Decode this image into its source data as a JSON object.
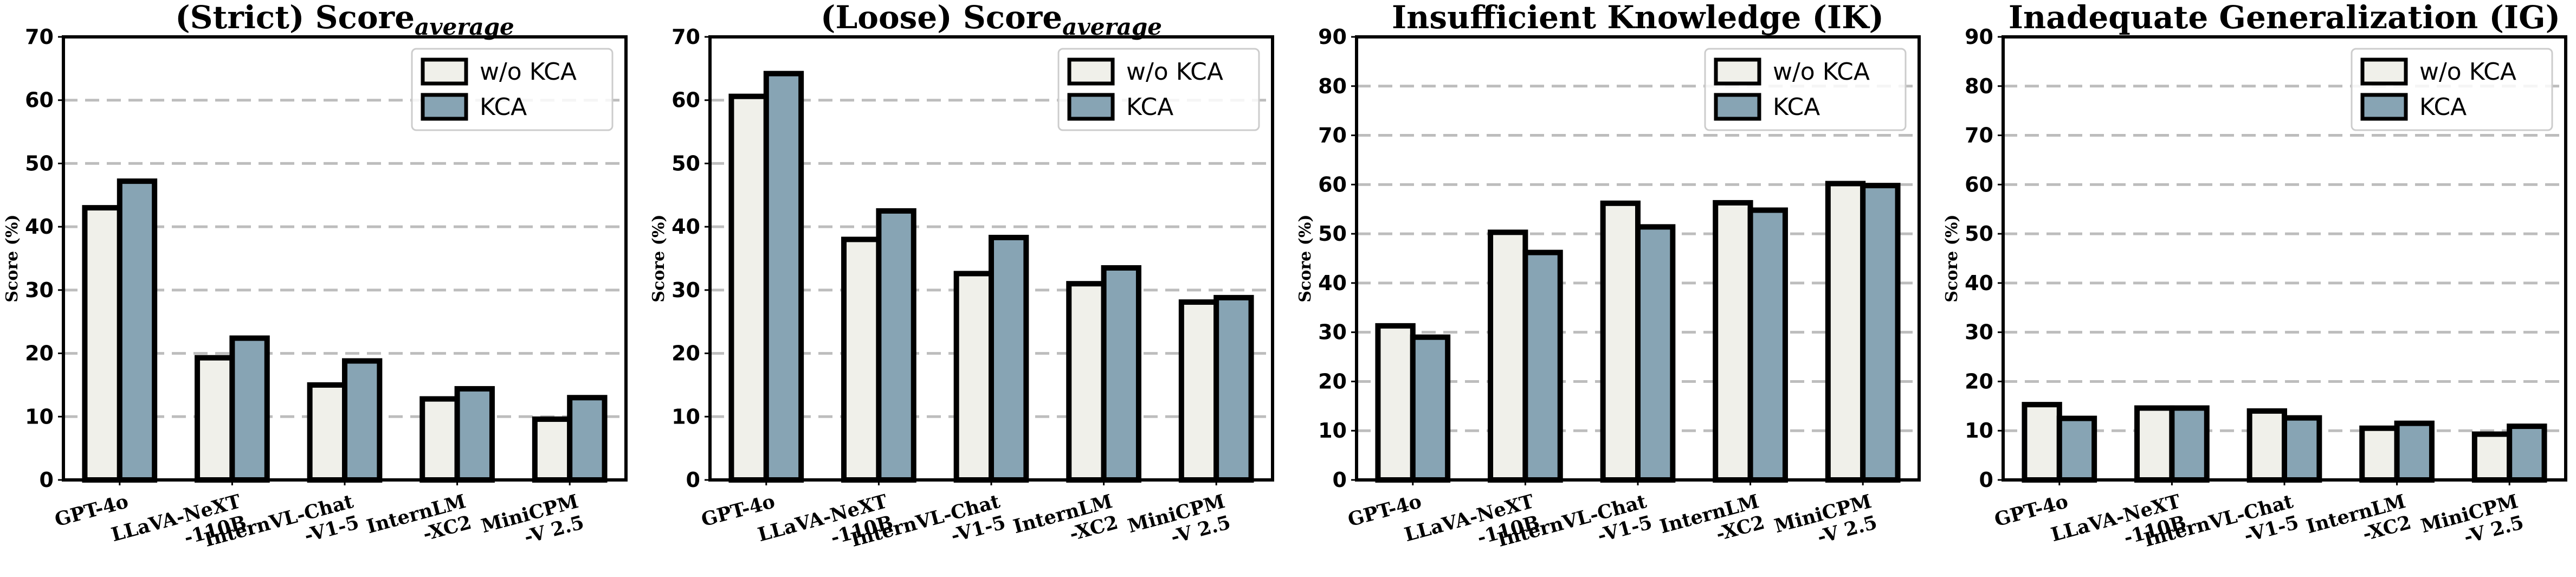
{
  "chart_data": [
    {
      "type": "bar",
      "title": "(Strict) Score",
      "title_subscript": "average",
      "xlabel": "",
      "ylabel": "Score (%)",
      "ylim": [
        0,
        70
      ],
      "yticks": [
        "0",
        "10",
        "20",
        "30",
        "40",
        "50",
        "60",
        "70"
      ],
      "categories": [
        "GPT-4o",
        "LLaVA-NeXT\n-110B",
        "InternVL-Chat\n-V1-5",
        "InternLM\n-XC2",
        "MiniCPM\n-V 2.5"
      ],
      "series": [
        {
          "name": "w/o KCA",
          "color": "#f0f0ea",
          "values": [
            43.0,
            19.3,
            15.0,
            12.8,
            9.6
          ]
        },
        {
          "name": "KCA",
          "color": "#87a4b4",
          "values": [
            47.2,
            22.4,
            18.8,
            14.4,
            13.0
          ]
        }
      ],
      "legend": "top-right",
      "grid": "y-dashed"
    },
    {
      "type": "bar",
      "title": "(Loose) Score",
      "title_subscript": "average",
      "xlabel": "",
      "ylabel": "Score (%)",
      "ylim": [
        0,
        70
      ],
      "yticks": [
        "0",
        "10",
        "20",
        "30",
        "40",
        "50",
        "60",
        "70"
      ],
      "categories": [
        "GPT-4o",
        "LLaVA-NeXT\n-110B",
        "InternVL-Chat\n-V1-5",
        "InternLM\n-XC2",
        "MiniCPM\n-V 2.5"
      ],
      "series": [
        {
          "name": "w/o KCA",
          "color": "#f0f0ea",
          "values": [
            60.6,
            38.0,
            32.6,
            31.0,
            28.1
          ]
        },
        {
          "name": "KCA",
          "color": "#87a4b4",
          "values": [
            64.2,
            42.5,
            38.3,
            33.5,
            28.8
          ]
        }
      ],
      "legend": "top-right",
      "grid": "y-dashed"
    },
    {
      "type": "bar",
      "title": "Insufficient Knowledge (IK)",
      "title_subscript": "",
      "xlabel": "",
      "ylabel": "Score (%)",
      "ylim": [
        0,
        90
      ],
      "yticks": [
        "0",
        "10",
        "20",
        "30",
        "40",
        "50",
        "60",
        "70",
        "80",
        "90"
      ],
      "categories": [
        "GPT-4o",
        "LLaVA-NeXT\n-110B",
        "InternVL-Chat\n-V1-5",
        "InternLM\n-XC2",
        "MiniCPM\n-V 2.5"
      ],
      "series": [
        {
          "name": "w/o KCA",
          "color": "#f0f0ea",
          "values": [
            31.3,
            50.3,
            56.2,
            56.3,
            60.2
          ]
        },
        {
          "name": "KCA",
          "color": "#87a4b4",
          "values": [
            29.0,
            46.2,
            51.4,
            54.8,
            59.8
          ]
        }
      ],
      "legend": "top-right",
      "grid": "y-dashed"
    },
    {
      "type": "bar",
      "title": "Inadequate Generalization (IG)",
      "title_subscript": "",
      "xlabel": "",
      "ylabel": "Score (%)",
      "ylim": [
        0,
        90
      ],
      "yticks": [
        "0",
        "10",
        "20",
        "30",
        "40",
        "50",
        "60",
        "70",
        "80",
        "90"
      ],
      "categories": [
        "GPT-4o",
        "LLaVA-NeXT\n-110B",
        "InternVL-Chat\n-V1-5",
        "InternLM\n-XC2",
        "MiniCPM\n-V 2.5"
      ],
      "series": [
        {
          "name": "w/o KCA",
          "color": "#f0f0ea",
          "values": [
            15.3,
            14.6,
            14.0,
            10.5,
            9.3
          ]
        },
        {
          "name": "KCA",
          "color": "#87a4b4",
          "values": [
            12.5,
            14.6,
            12.6,
            11.5,
            10.9
          ]
        }
      ],
      "legend": "top-right",
      "grid": "y-dashed"
    }
  ]
}
